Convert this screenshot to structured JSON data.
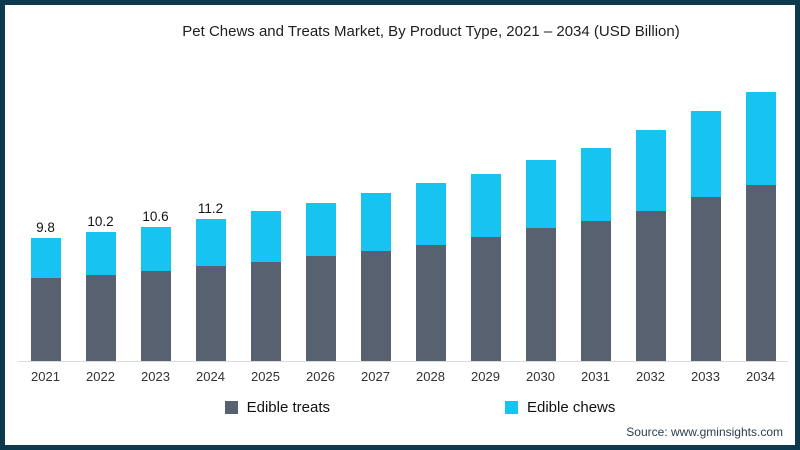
{
  "title": "Pet Chews and Treats Market, By Product Type, 2021 – 2034 (USD Billion)",
  "source": "Source: www.gminsights.com",
  "colors": {
    "frame_border": "#0E3A50",
    "edible_treats": "#58616F",
    "edible_chews": "#17C3F0",
    "axis_line": "#DCDCDC"
  },
  "legend": {
    "items": [
      {
        "label": "Edible treats",
        "color": "#58616F"
      },
      {
        "label": "Edible chews",
        "color": "#17C3F0"
      }
    ]
  },
  "chart_data": {
    "type": "bar",
    "stacked": true,
    "title": "Pet Chews and Treats Market, By Product Type, 2021 – 2034 (USD Billion)",
    "xlabel": "",
    "ylabel": "",
    "categories": [
      "2021",
      "2022",
      "2023",
      "2024",
      "2025",
      "2026",
      "2027",
      "2028",
      "2029",
      "2030",
      "2031",
      "2032",
      "2033",
      "2034"
    ],
    "series": [
      {
        "name": "Edible treats",
        "color": "#58616F",
        "values": [
          6.6,
          6.8,
          7.1,
          7.5,
          7.8,
          8.3,
          8.7,
          9.2,
          9.8,
          10.5,
          11.1,
          11.9,
          13.0,
          13.9
        ]
      },
      {
        "name": "Edible chews",
        "color": "#17C3F0",
        "values": [
          3.2,
          3.4,
          3.5,
          3.7,
          4.0,
          4.2,
          4.6,
          4.9,
          5.0,
          5.4,
          5.8,
          6.4,
          6.8,
          7.4
        ]
      }
    ],
    "totals": [
      9.8,
      10.2,
      10.6,
      11.2,
      11.8,
      12.5,
      13.3,
      14.1,
      14.8,
      15.9,
      16.9,
      18.3,
      19.8,
      21.3
    ],
    "value_labels": [
      "9.8",
      "10.2",
      "10.6",
      "11.2",
      "",
      "",
      "",
      "",
      "",
      "",
      "",
      "",
      "",
      ""
    ],
    "ylim": [
      0,
      21.5
    ],
    "grid": false,
    "axis_visible": "x-only",
    "legend_position": "bottom"
  }
}
